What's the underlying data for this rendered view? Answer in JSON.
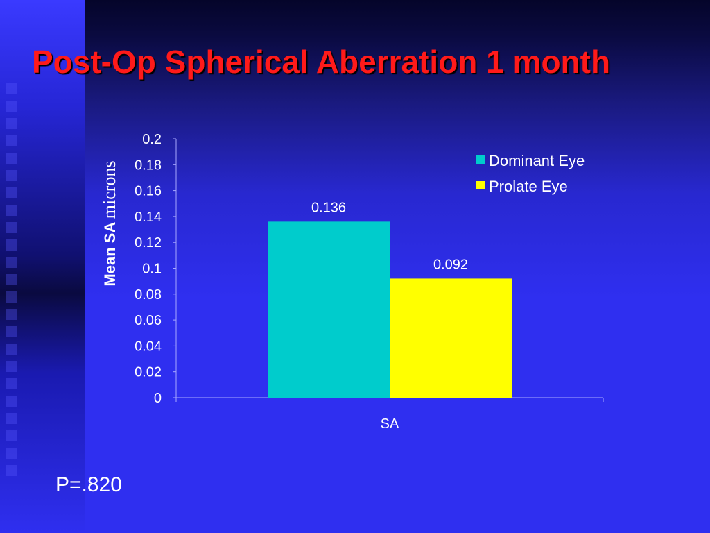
{
  "slide": {
    "title": "Post-Op Spherical Aberration 1 month",
    "p_value": "P=.820"
  },
  "chart_data": {
    "type": "bar",
    "categories": [
      "SA"
    ],
    "series": [
      {
        "name": "Dominant Eye",
        "values": [
          0.136
        ],
        "labels": [
          "0.136"
        ],
        "color": "#00cccc"
      },
      {
        "name": "Prolate Eye",
        "values": [
          0.092
        ],
        "labels": [
          "0.092"
        ],
        "color": "#ffff00"
      }
    ],
    "ylabel_bold": "Mean SA",
    "ylabel_serif": "microns",
    "ylim": [
      0,
      0.2
    ],
    "yticks": [
      "0",
      "0.02",
      "0.04",
      "0.06",
      "0.08",
      "0.1",
      "0.12",
      "0.14",
      "0.16",
      "0.18",
      "0.2"
    ],
    "grid": false,
    "legend_position": "top-right"
  }
}
